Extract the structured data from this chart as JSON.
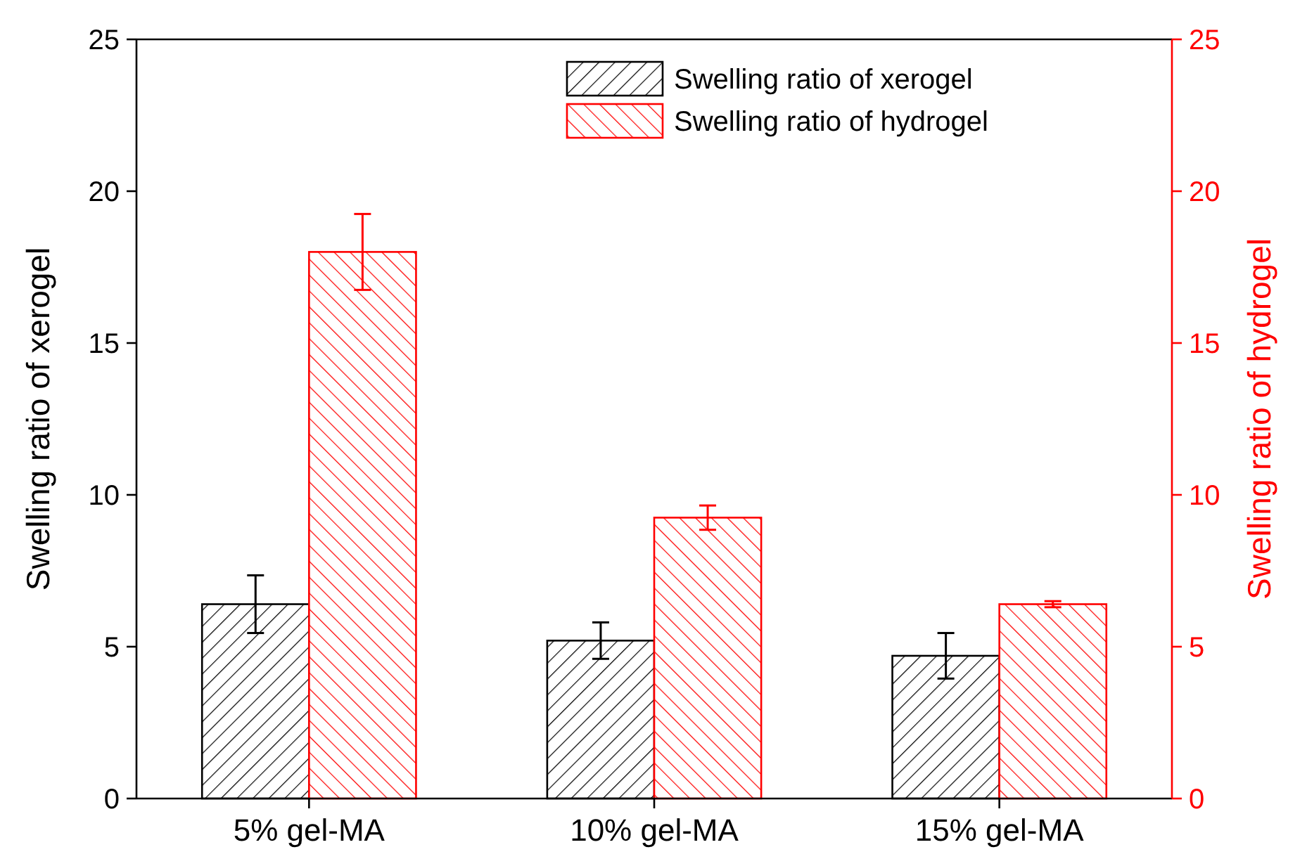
{
  "chart_data": {
    "type": "bar",
    "categories": [
      "5% gel-MA",
      "10% gel-MA",
      "15% gel-MA"
    ],
    "ylabel": "Swelling ratio of xerogel",
    "y2label": "Swelling ratio of hydrogel",
    "ylim": [
      0,
      25
    ],
    "yticks": [
      0,
      5,
      10,
      15,
      20,
      25
    ],
    "y2lim": [
      0,
      25
    ],
    "y2ticks": [
      0,
      5,
      10,
      15,
      20,
      25
    ],
    "legend": "top right",
    "grid": false,
    "series": [
      {
        "name": "Swelling ratio of xerogel",
        "color": "#000000",
        "values": [
          6.4,
          5.2,
          4.7
        ],
        "errors": [
          0.95,
          0.6,
          0.75
        ]
      },
      {
        "name": "Swelling ratio of hydrogel",
        "color": "#ff0000",
        "axis": "y2",
        "values": [
          18.0,
          9.25,
          6.4
        ],
        "errors": [
          1.25,
          0.4,
          0.1
        ]
      }
    ]
  }
}
